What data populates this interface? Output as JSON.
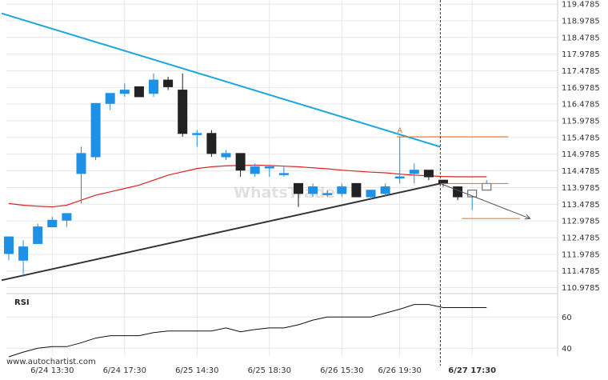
{
  "source_text": "www.autochartist.com",
  "watermark_text": "WhatsTrade",
  "rsi_label": "RSI",
  "marker_label": "A",
  "colors": {
    "up_fill": "#1e90e6",
    "down_fill": "#222222",
    "ma_line": "#dd2222",
    "upper_trendline": "#1ea6e0",
    "lower_trendline": "#333333",
    "level_line": "#e07020",
    "projection": "#555555",
    "rsi_line": "#111111",
    "grid": "#e6e6e6",
    "divider": "#333333"
  },
  "chart_data": [
    {
      "type": "candlestick",
      "title": "",
      "ylim": [
        110.8,
        119.6
      ],
      "y_ticks": [
        119.4785,
        118.9785,
        118.4785,
        117.9785,
        117.4785,
        116.9785,
        116.4785,
        115.9785,
        115.4785,
        114.9785,
        114.4785,
        113.9785,
        113.4785,
        112.9785,
        112.4785,
        111.9785,
        111.4785,
        110.9785
      ],
      "x_ticks": [
        "6/24 13:30",
        "6/24 17:30",
        "6/25 14:30",
        "6/25 18:30",
        "6/26 15:30",
        "6/26 19:30",
        "6/27 17:30"
      ],
      "x_tick_index": [
        3,
        8,
        13,
        18,
        23,
        27,
        32
      ],
      "highlighted_x_tick": "6/27 17:30",
      "grid": true,
      "candles": [
        {
          "o": 112.0,
          "h": 112.5,
          "l": 111.8,
          "c": 112.5
        },
        {
          "o": 111.8,
          "h": 112.4,
          "l": 111.3,
          "c": 112.2
        },
        {
          "o": 112.3,
          "h": 112.9,
          "l": 112.3,
          "c": 112.8
        },
        {
          "o": 112.8,
          "h": 113.1,
          "l": 112.8,
          "c": 113.0
        },
        {
          "o": 113.0,
          "h": 113.2,
          "l": 112.8,
          "c": 113.2
        },
        {
          "o": 114.4,
          "h": 115.2,
          "l": 113.5,
          "c": 115.0
        },
        {
          "o": 114.9,
          "h": 116.5,
          "l": 114.8,
          "c": 116.5
        },
        {
          "o": 116.5,
          "h": 116.8,
          "l": 116.3,
          "c": 116.8
        },
        {
          "o": 116.8,
          "h": 117.1,
          "l": 116.7,
          "c": 116.9
        },
        {
          "o": 117.0,
          "h": 117.0,
          "l": 116.7,
          "c": 116.7
        },
        {
          "o": 116.8,
          "h": 117.4,
          "l": 116.7,
          "c": 117.2
        },
        {
          "o": 117.2,
          "h": 117.3,
          "l": 116.9,
          "c": 117.0
        },
        {
          "o": 116.9,
          "h": 117.4,
          "l": 115.5,
          "c": 115.6
        },
        {
          "o": 115.6,
          "h": 115.7,
          "l": 115.2,
          "c": 115.6
        },
        {
          "o": 115.6,
          "h": 115.7,
          "l": 114.9,
          "c": 115.0
        },
        {
          "o": 114.9,
          "h": 115.1,
          "l": 114.8,
          "c": 115.0
        },
        {
          "o": 115.0,
          "h": 115.0,
          "l": 114.3,
          "c": 114.5
        },
        {
          "o": 114.4,
          "h": 114.7,
          "l": 114.3,
          "c": 114.6
        },
        {
          "o": 114.6,
          "h": 114.6,
          "l": 114.3,
          "c": 114.6
        },
        {
          "o": 114.4,
          "h": 114.6,
          "l": 114.3,
          "c": 114.4
        },
        {
          "o": 114.1,
          "h": 114.1,
          "l": 113.4,
          "c": 113.8
        },
        {
          "o": 113.8,
          "h": 114.1,
          "l": 113.7,
          "c": 114.0
        },
        {
          "o": 113.8,
          "h": 113.9,
          "l": 113.7,
          "c": 113.8
        },
        {
          "o": 113.8,
          "h": 114.1,
          "l": 113.7,
          "c": 114.0
        },
        {
          "o": 114.1,
          "h": 114.1,
          "l": 113.7,
          "c": 113.7
        },
        {
          "o": 113.7,
          "h": 113.9,
          "l": 113.6,
          "c": 113.9
        },
        {
          "o": 113.8,
          "h": 114.1,
          "l": 113.7,
          "c": 114.0
        },
        {
          "o": 114.3,
          "h": 115.5,
          "l": 114.1,
          "c": 114.3
        },
        {
          "o": 114.4,
          "h": 114.7,
          "l": 114.1,
          "c": 114.5
        },
        {
          "o": 114.5,
          "h": 114.5,
          "l": 114.2,
          "c": 114.3
        },
        {
          "o": 114.2,
          "h": 114.2,
          "l": 114.0,
          "c": 114.1
        },
        {
          "o": 114.0,
          "h": 114.0,
          "l": 113.6,
          "c": 113.7
        },
        {
          "o": 113.7,
          "h": 113.9,
          "l": 113.3,
          "c": 113.9
        },
        {
          "o": 113.9,
          "h": 114.2,
          "l": 113.9,
          "c": 114.1
        }
      ],
      "moving_average": [
        113.5,
        113.45,
        113.42,
        113.4,
        113.45,
        113.6,
        113.75,
        113.85,
        113.95,
        114.05,
        114.2,
        114.35,
        114.45,
        114.55,
        114.6,
        114.63,
        114.64,
        114.65,
        114.64,
        114.62,
        114.6,
        114.57,
        114.54,
        114.5,
        114.47,
        114.44,
        114.42,
        114.38,
        114.35,
        114.33,
        114.31,
        114.3,
        114.3,
        114.3
      ],
      "trendline_upper": {
        "from": {
          "i": -0.5,
          "y": 119.2
        },
        "to": {
          "i": 29.8,
          "y": 115.2
        }
      },
      "trendline_lower": {
        "from": {
          "i": -0.5,
          "y": 111.2
        },
        "to": {
          "i": 29.8,
          "y": 114.1
        }
      },
      "resistance_level": {
        "y": 115.5,
        "from_i": 26.8,
        "to_i": 34.5
      },
      "support_level": {
        "y": 114.1,
        "from_i": 29.8,
        "to_i": 34.5
      },
      "target_level": {
        "y": 113.05,
        "from_i": 31.3,
        "to_i": 35.3
      },
      "projection_arrow": {
        "from": {
          "i": 29.8,
          "y": 114.1
        },
        "to": {
          "i": 36.0,
          "y": 113.05
        }
      },
      "marker_a": {
        "i": 27.0,
        "y": 115.55
      },
      "divider_i": 29.8
    },
    {
      "type": "line",
      "title": "RSI",
      "ylim": [
        35,
        75
      ],
      "y_ticks": [
        60,
        40
      ],
      "values": [
        34.5,
        37.5,
        40,
        41,
        41,
        43.5,
        46.5,
        48,
        48,
        48,
        50,
        51,
        51,
        51,
        51,
        53,
        50.5,
        52,
        53,
        53,
        55,
        58,
        60,
        60,
        60,
        60,
        62.5,
        65,
        68,
        68,
        66,
        66,
        66,
        66
      ]
    }
  ]
}
